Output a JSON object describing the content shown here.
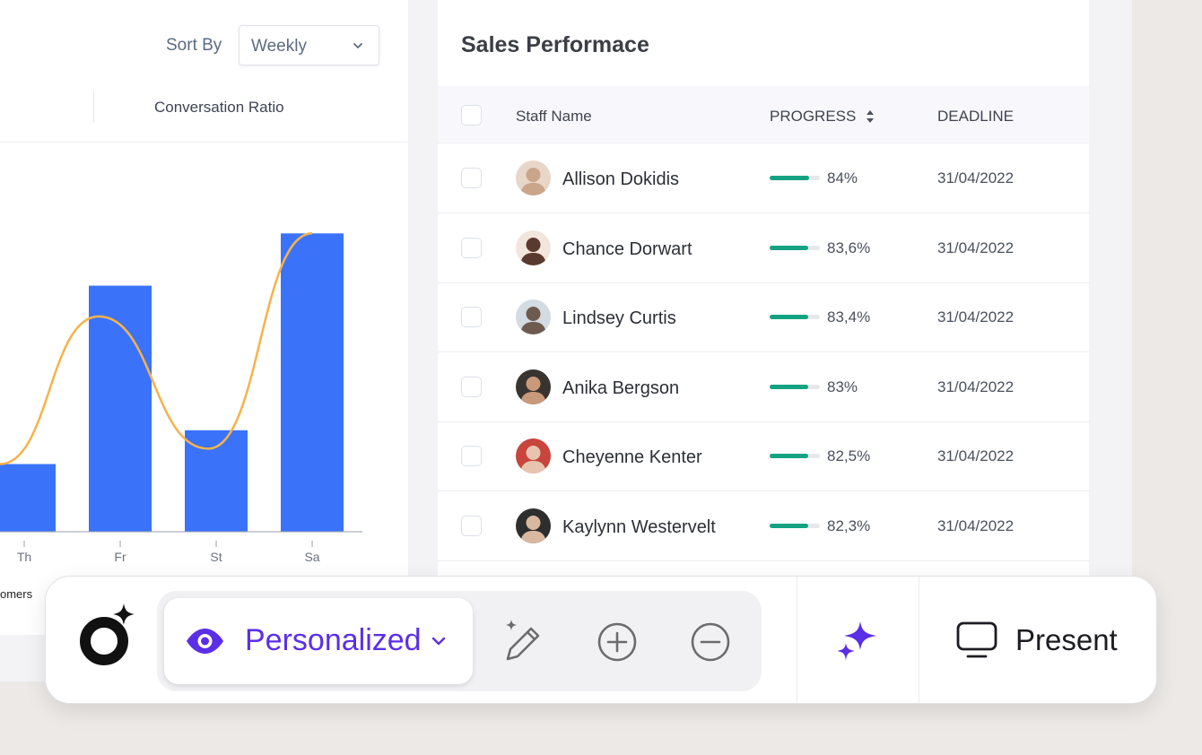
{
  "sort": {
    "label": "Sort By",
    "value": "Weekly"
  },
  "chart_tab": {
    "label": "Conversation Ratio"
  },
  "chart_data": {
    "type": "bar",
    "categories": [
      "Th",
      "Fr",
      "St",
      "Sa"
    ],
    "values": [
      22,
      80,
      33,
      97
    ],
    "line_values": [
      22,
      70,
      27,
      97
    ],
    "colors": {
      "bar": "#3a73fa",
      "line": "#f7b24a"
    },
    "legend_partial": "omers"
  },
  "sales": {
    "title": "Sales Performace",
    "columns": {
      "name": "Staff Name",
      "progress": "PROGRESS",
      "deadline": "DEADLINE"
    },
    "rows": [
      {
        "name": "Allison Dokidis",
        "progress": 84,
        "progress_label": "84%",
        "deadline": "31/04/2022"
      },
      {
        "name": "Chance Dorwart",
        "progress": 83.6,
        "progress_label": "83,6%",
        "deadline": "31/04/2022"
      },
      {
        "name": "Lindsey Curtis",
        "progress": 83.4,
        "progress_label": "83,4%",
        "deadline": "31/04/2022"
      },
      {
        "name": "Anika Bergson",
        "progress": 83,
        "progress_label": "83%",
        "deadline": "31/04/2022"
      },
      {
        "name": "Cheyenne Kenter",
        "progress": 82.5,
        "progress_label": "82,5%",
        "deadline": "31/04/2022"
      },
      {
        "name": "Kaylynn Westervelt",
        "progress": 82.3,
        "progress_label": "82,3%",
        "deadline": "31/04/2022"
      }
    ],
    "progress_color": "#13a383"
  },
  "toolbar": {
    "mode_label": "Personalized",
    "present_label": "Present",
    "accent": "#5b2ee8",
    "icons": [
      "app-logo-icon",
      "eye-icon",
      "chevron-down-icon",
      "magic-pencil-icon",
      "zoom-in-icon",
      "zoom-out-icon",
      "sparkles-icon",
      "monitor-icon"
    ]
  }
}
